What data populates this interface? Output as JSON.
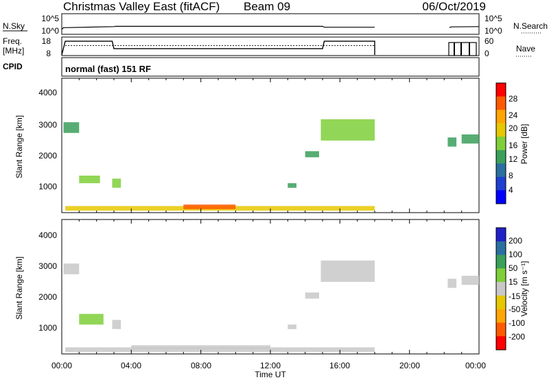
{
  "header": {
    "title": "Christmas Valley East (fitACF)",
    "beam": "Beam 09",
    "date": "06/Oct/2019"
  },
  "summary_panels": {
    "nsky": {
      "label": "N.Sky",
      "tick_top": "10^5",
      "tick_bottom": "10^0"
    },
    "nsearch": {
      "label": "N.Search",
      "tick_top": "10^5",
      "tick_bottom": "10^0"
    },
    "freq": {
      "label_line1": "Freq.",
      "label_line2": "[MHz]",
      "tick_top": "18",
      "tick_bottom": "8"
    },
    "nave": {
      "label": "Nave",
      "tick_top": "60",
      "tick_bottom": "0"
    },
    "cpid": {
      "label": "CPID",
      "mode": "normal (fast) 151 RF"
    }
  },
  "power_panel": {
    "ylabel": "Slant Range [km]",
    "yticks": [
      "4000",
      "3000",
      "2000",
      "1000"
    ],
    "colorbar_label": "Power [dB]",
    "colorbar_ticks": [
      "28",
      "24",
      "20",
      "16",
      "12",
      "8",
      "4"
    ],
    "colorbar_colors": [
      "#ff0000",
      "#ff5a00",
      "#ffa500",
      "#e6c800",
      "#7fcf3a",
      "#3a9f5a",
      "#2a6fa0",
      "#1f3fd0",
      "#0000ff"
    ]
  },
  "velocity_panel": {
    "ylabel": "Slant Range [km]",
    "yticks": [
      "4000",
      "3000",
      "2000",
      "1000"
    ],
    "colorbar_label": "Velocity [m s⁻¹]",
    "colorbar_ticks": [
      "200",
      "100",
      "50",
      "15",
      "-15",
      "-50",
      "-100",
      "-200"
    ],
    "colorbar_colors": [
      "#2020c8",
      "#2a6fa0",
      "#3a9f5a",
      "#7fcf3a",
      "#c8c8c8",
      "#e6c800",
      "#ffa500",
      "#ff5a00",
      "#ff0000"
    ]
  },
  "xaxis": {
    "label": "Time UT",
    "ticks": [
      "00:00",
      "04:00",
      "08:00",
      "12:00",
      "16:00",
      "20:00",
      "00:00"
    ]
  },
  "chart_data": [
    {
      "type": "line",
      "name": "N.Sky",
      "x_range_hours": [
        0,
        24
      ],
      "log_scale": true,
      "ylim": [
        1,
        100000
      ],
      "x": [
        0.0,
        0.1,
        0.2,
        3.0,
        3.1,
        15.0,
        15.1,
        18.0,
        22.3,
        22.4,
        24.0
      ],
      "y": [
        10,
        30,
        30,
        60,
        70,
        70,
        40,
        40,
        30,
        50,
        60
      ]
    },
    {
      "type": "line",
      "name": "Freq.",
      "x_range_hours": [
        0,
        24
      ],
      "ylim": [
        8,
        18
      ],
      "x": [
        0.0,
        0.2,
        2.9,
        3.0,
        15.0,
        15.1,
        18.0,
        22.3,
        24.0
      ],
      "y": [
        8.0,
        16.3,
        16.3,
        11.8,
        11.8,
        16.3,
        16.3,
        16.3,
        16.3
      ]
    },
    {
      "type": "line",
      "name": "Nave",
      "x_range_hours": [
        0,
        24
      ],
      "ylim": [
        0,
        60
      ],
      "x": [
        0.0,
        24.0
      ],
      "y": [
        34,
        34
      ]
    },
    {
      "type": "heatmap",
      "name": "Power",
      "x_range_hours": [
        0,
        24
      ],
      "ylim": [
        180,
        4500
      ],
      "clim": [
        0,
        30
      ],
      "cells": [
        {
          "t0": 0.1,
          "t1": 1.0,
          "r0": 2750,
          "r1": 3100,
          "v": 10
        },
        {
          "t0": 1.0,
          "t1": 2.2,
          "r0": 1100,
          "r1": 1350,
          "v": 14
        },
        {
          "t0": 2.9,
          "t1": 3.4,
          "r0": 950,
          "r1": 1250,
          "v": 16
        },
        {
          "t0": 0.2,
          "t1": 18.0,
          "r0": 200,
          "r1": 350,
          "v": 20
        },
        {
          "t0": 7.0,
          "t1": 10.0,
          "r0": 250,
          "r1": 400,
          "v": 26
        },
        {
          "t0": 13.0,
          "t1": 13.5,
          "r0": 950,
          "r1": 1100,
          "v": 10
        },
        {
          "t0": 14.0,
          "t1": 14.8,
          "r0": 1950,
          "r1": 2150,
          "v": 12
        },
        {
          "t0": 14.9,
          "t1": 18.0,
          "r0": 2500,
          "r1": 3200,
          "v": 14
        },
        {
          "t0": 22.2,
          "t1": 22.7,
          "r0": 2300,
          "r1": 2600,
          "v": 12
        },
        {
          "t0": 23.0,
          "t1": 24.0,
          "r0": 2400,
          "r1": 2700,
          "v": 10
        }
      ]
    },
    {
      "type": "heatmap",
      "name": "Velocity",
      "x_range_hours": [
        0,
        24
      ],
      "ylim": [
        180,
        4500
      ],
      "clim": [
        -250,
        250
      ],
      "cells": [
        {
          "t0": 0.1,
          "t1": 1.0,
          "r0": 2750,
          "r1": 3100,
          "v": 0
        },
        {
          "t0": 1.0,
          "t1": 2.4,
          "r0": 1100,
          "r1": 1450,
          "v": 60
        },
        {
          "t0": 2.9,
          "t1": 3.4,
          "r0": 950,
          "r1": 1250,
          "v": 30
        },
        {
          "t0": 0.2,
          "t1": 18.0,
          "r0": 200,
          "r1": 350,
          "v": -20
        },
        {
          "t0": 4.0,
          "t1": 12.0,
          "r0": 300,
          "r1": 420,
          "v": 20
        },
        {
          "t0": 13.0,
          "t1": 13.5,
          "r0": 950,
          "r1": 1100,
          "v": 0
        },
        {
          "t0": 14.0,
          "t1": 14.8,
          "r0": 1950,
          "r1": 2150,
          "v": 0
        },
        {
          "t0": 14.9,
          "t1": 18.0,
          "r0": 2500,
          "r1": 3200,
          "v": 0
        },
        {
          "t0": 22.2,
          "t1": 22.7,
          "r0": 2300,
          "r1": 2600,
          "v": 0
        },
        {
          "t0": 23.0,
          "t1": 24.0,
          "r0": 2400,
          "r1": 2700,
          "v": 0
        }
      ]
    }
  ]
}
